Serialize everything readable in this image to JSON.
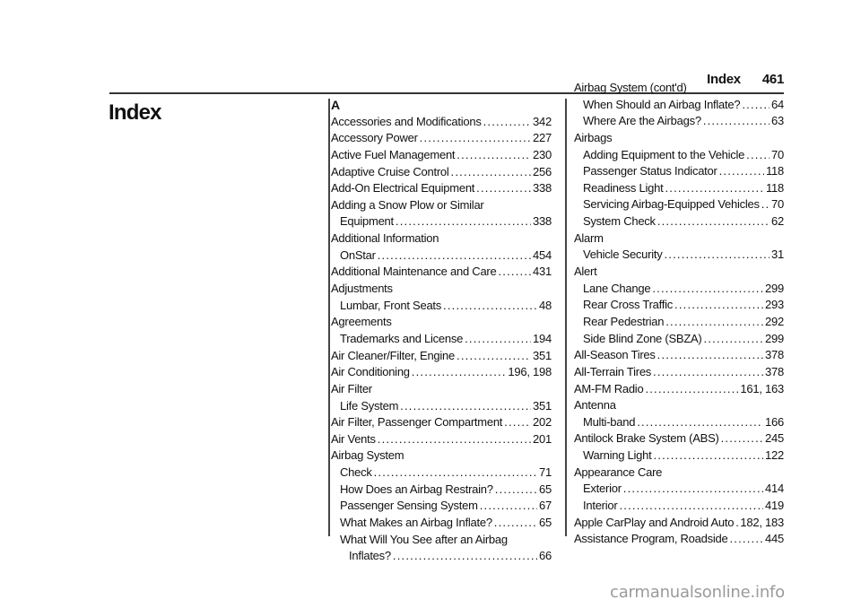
{
  "header": {
    "section": "Index",
    "page_number": "461"
  },
  "title": "Index",
  "watermark": "carmanualsonline.info",
  "columns": [
    [
      {
        "letter": "A"
      },
      {
        "text": "Accessories and Modifications",
        "page": "342",
        "level": 0
      },
      {
        "text": "Accessory Power",
        "page": "227",
        "level": 0
      },
      {
        "text": "Active Fuel Management",
        "page": "230",
        "level": 0
      },
      {
        "text": "Adaptive Cruise Control",
        "page": "256",
        "level": 0
      },
      {
        "text": "Add-On Electrical Equipment",
        "page": "338",
        "level": 0
      },
      {
        "text": "Adding a Snow Plow or Similar",
        "level": 0
      },
      {
        "text": "Equipment",
        "page": "338",
        "level": 1
      },
      {
        "text": "Additional Information",
        "level": 0
      },
      {
        "text": "OnStar",
        "page": "454",
        "level": 1
      },
      {
        "text": "Additional Maintenance and Care",
        "page": "431",
        "level": 0
      },
      {
        "text": "Adjustments",
        "level": 0
      },
      {
        "text": "Lumbar, Front Seats",
        "page": "48",
        "level": 1
      },
      {
        "text": "Agreements",
        "level": 0
      },
      {
        "text": "Trademarks and License",
        "page": "194",
        "level": 1
      },
      {
        "text": "Air Cleaner/Filter, Engine",
        "page": "351",
        "level": 0
      },
      {
        "text": "Air Conditioning",
        "page": "196, 198",
        "level": 0
      },
      {
        "text": "Air Filter",
        "level": 0
      },
      {
        "text": "Life System",
        "page": "351",
        "level": 1
      },
      {
        "text": "Air Filter, Passenger Compartment",
        "page": "202",
        "level": 0
      },
      {
        "text": "Air Vents",
        "page": "201",
        "level": 0
      },
      {
        "text": "Airbag System",
        "level": 0
      },
      {
        "text": "Check",
        "page": "71",
        "level": 1
      },
      {
        "text": "How Does an Airbag Restrain?",
        "page": "65",
        "level": 1
      },
      {
        "text": "Passenger Sensing System",
        "page": "67",
        "level": 1
      },
      {
        "text": "What Makes an Airbag Inflate?",
        "page": "65",
        "level": 1
      },
      {
        "text": "What Will You See after an Airbag",
        "level": 1
      },
      {
        "text": "Inflates?",
        "page": "66",
        "level": 2
      }
    ],
    [
      {
        "text": "Airbag System (cont'd)",
        "level": 0
      },
      {
        "text": "When Should an Airbag Inflate?",
        "page": "64",
        "level": 1
      },
      {
        "text": "Where Are the Airbags?",
        "page": "63",
        "level": 1
      },
      {
        "text": "Airbags",
        "level": 0
      },
      {
        "text": "Adding Equipment to the Vehicle",
        "page": "70",
        "level": 1
      },
      {
        "text": "Passenger Status Indicator",
        "page": "118",
        "level": 1
      },
      {
        "text": "Readiness Light",
        "page": "118",
        "level": 1
      },
      {
        "text": "Servicing Airbag-Equipped Vehicles",
        "page": "70",
        "level": 1
      },
      {
        "text": "System Check",
        "page": "62",
        "level": 1
      },
      {
        "text": "Alarm",
        "level": 0
      },
      {
        "text": "Vehicle Security",
        "page": "31",
        "level": 1
      },
      {
        "text": "Alert",
        "level": 0
      },
      {
        "text": "Lane Change",
        "page": "299",
        "level": 1
      },
      {
        "text": "Rear Cross Traffic",
        "page": "293",
        "level": 1
      },
      {
        "text": "Rear Pedestrian",
        "page": "292",
        "level": 1
      },
      {
        "text": "Side Blind Zone (SBZA)",
        "page": "299",
        "level": 1
      },
      {
        "text": "All-Season Tires",
        "page": "378",
        "level": 0
      },
      {
        "text": "All-Terrain Tires",
        "page": "378",
        "level": 0
      },
      {
        "text": "AM-FM Radio",
        "page": "161, 163",
        "level": 0
      },
      {
        "text": "Antenna",
        "level": 0
      },
      {
        "text": "Multi-band",
        "page": "166",
        "level": 1
      },
      {
        "text": "Antilock Brake System (ABS)",
        "page": "245",
        "level": 0
      },
      {
        "text": "Warning Light",
        "page": "122",
        "level": 1
      },
      {
        "text": "Appearance Care",
        "level": 0
      },
      {
        "text": "Exterior",
        "page": "414",
        "level": 1
      },
      {
        "text": "Interior",
        "page": "419",
        "level": 1
      },
      {
        "text": "Apple CarPlay and Android Auto",
        "page": "182, 183",
        "level": 0
      },
      {
        "text": "Assistance Program, Roadside",
        "page": "445",
        "level": 0
      }
    ]
  ]
}
